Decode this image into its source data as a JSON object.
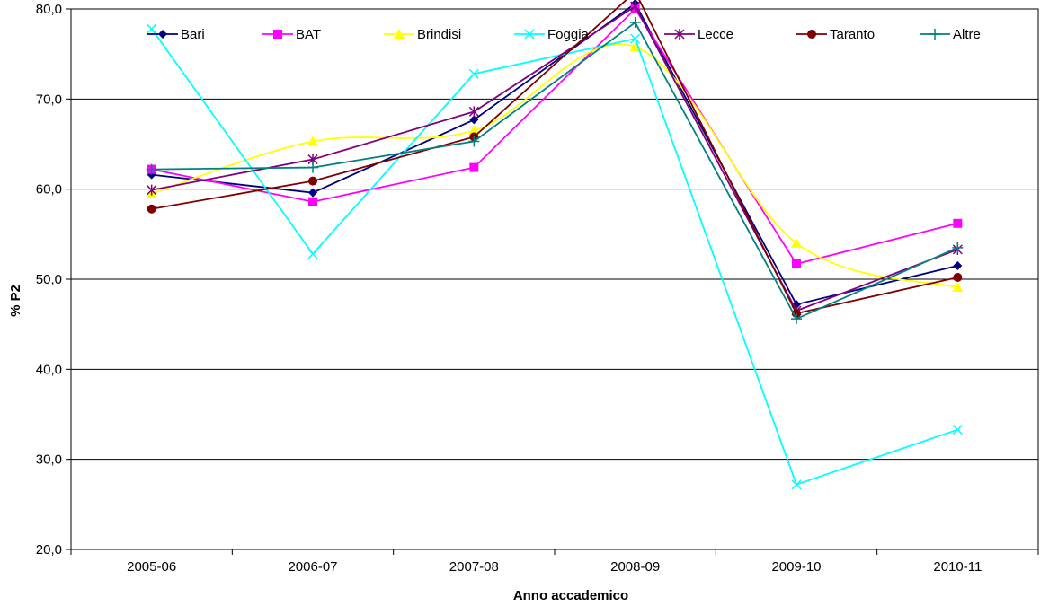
{
  "chart_data": {
    "type": "line",
    "title": "",
    "xlabel": "Anno accademico",
    "ylabel": "% P2",
    "categories": [
      "2005-06",
      "2006-07",
      "2007-08",
      "2008-09",
      "2009-10",
      "2010-11"
    ],
    "ylim": [
      20,
      80
    ],
    "yticks": [
      "20,0",
      "30,0",
      "40,0",
      "50,0",
      "60,0",
      "70,0",
      "80,0"
    ],
    "grid": "horizontal",
    "legend_position": "top",
    "series": [
      {
        "name": "Bari",
        "color": "#000080",
        "marker": "diamond",
        "smooth": false,
        "values": [
          61.6,
          59.6,
          67.7,
          80.6,
          47.2,
          51.5
        ]
      },
      {
        "name": "BAT",
        "color": "#FF00FF",
        "marker": "square",
        "smooth": false,
        "values": [
          62.2,
          58.6,
          62.4,
          80.0,
          51.7,
          56.2
        ]
      },
      {
        "name": "Brindisi",
        "color": "#FFFF00",
        "marker": "triangle",
        "smooth": true,
        "values": [
          59.5,
          65.3,
          66.5,
          75.8,
          54.0,
          49.1
        ]
      },
      {
        "name": "Foggia",
        "color": "#00FFFF",
        "marker": "x",
        "smooth": false,
        "values": [
          77.8,
          52.8,
          72.8,
          76.7,
          27.2,
          33.3
        ]
      },
      {
        "name": "Lecce",
        "color": "#800080",
        "marker": "star",
        "smooth": false,
        "values": [
          59.9,
          63.3,
          68.6,
          80.3,
          46.5,
          53.3
        ]
      },
      {
        "name": "Taranto",
        "color": "#800000",
        "marker": "circle",
        "smooth": false,
        "values": [
          57.8,
          60.9,
          65.8,
          81.9,
          46.2,
          50.2
        ]
      },
      {
        "name": "Altre",
        "color": "#008080",
        "marker": "plus",
        "smooth": false,
        "values": [
          62.2,
          62.4,
          65.3,
          78.5,
          45.6,
          53.5
        ]
      }
    ]
  }
}
